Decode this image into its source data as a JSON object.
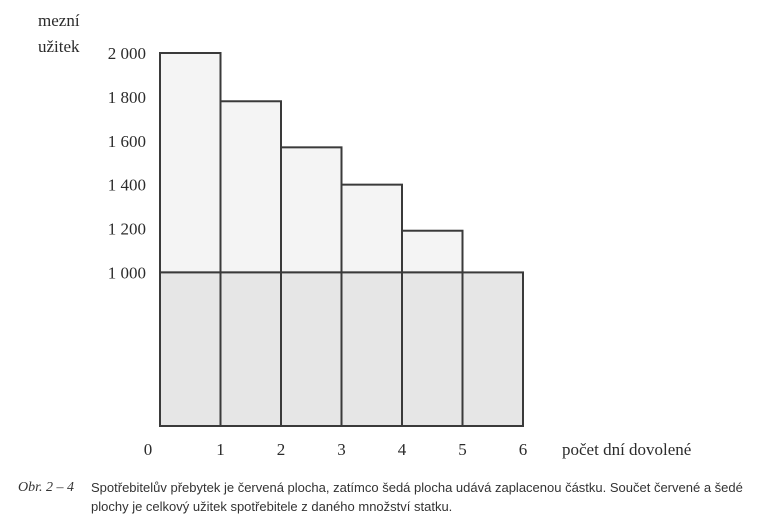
{
  "chart_data": {
    "type": "bar",
    "ylabel": "mezní\nužitek",
    "xlabel": "počet dní dovolené",
    "x_ticks": [
      "0",
      "1",
      "2",
      "3",
      "4",
      "5",
      "6"
    ],
    "y_ticks": [
      "2 000",
      "1 800",
      "1 600",
      "1 400",
      "1 200",
      "1 000"
    ],
    "y_tick_values": [
      2000,
      1800,
      1600,
      1400,
      1200,
      1000
    ],
    "values": [
      2000,
      1780,
      1570,
      1400,
      1190,
      1000
    ],
    "price": 1000,
    "ylim": [
      300,
      2000
    ],
    "xlim": [
      0,
      6
    ],
    "grid": false,
    "colors": {
      "upper_area": "#f4f4f4",
      "lower_area": "#e6e6e6",
      "outline": "#3a3a3a"
    }
  },
  "caption": {
    "number": "Obr. 2 – 4",
    "text": "Spotřebitelův přebytek je červená plocha, zatímco šedá plocha udává zaplacenou částku. Součet červené a šedé plochy je celkový užitek spotřebitele z daného množství statku."
  }
}
